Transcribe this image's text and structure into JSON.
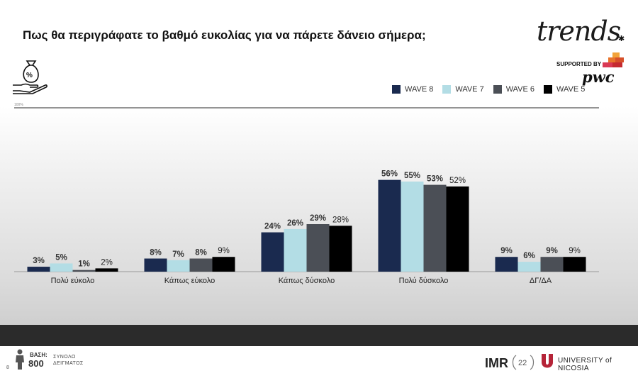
{
  "title": "Πως θα περιγράφατε το βαθμό ευκολίας για να πάρετε δάνειο σήμερα;",
  "brand": {
    "name": "trends",
    "supported_by": "SUPPORTED BY",
    "sponsor": "pwc"
  },
  "legend": [
    {
      "label": "WAVE 8",
      "color": "#1a2a4f"
    },
    {
      "label": "WAVE 7",
      "color": "#b3dde5"
    },
    {
      "label": "WAVE 6",
      "color": "#4b4f56"
    },
    {
      "label": "WAVE 5",
      "color": "#000000"
    }
  ],
  "chart_data": {
    "type": "bar",
    "categories": [
      "Πολύ εύκολο",
      "Κάπως εύκολο",
      "Κάπως δύσκολο",
      "Πολύ δύσκολο",
      "ΔΓ/ΔΑ"
    ],
    "series": [
      {
        "name": "WAVE 8",
        "values": [
          3,
          8,
          24,
          56,
          9
        ]
      },
      {
        "name": "WAVE 7",
        "values": [
          5,
          7,
          26,
          55,
          6
        ]
      },
      {
        "name": "WAVE 6",
        "values": [
          1,
          8,
          29,
          53,
          9
        ]
      },
      {
        "name": "WAVE 5",
        "values": [
          2,
          9,
          28,
          52,
          9
        ]
      }
    ],
    "value_suffix": "%",
    "ylim": [
      0,
      100
    ],
    "top_gridline_label": "100%",
    "colors": [
      "#1a2a4f",
      "#b3dde5",
      "#4b4f56",
      "#000000"
    ]
  },
  "footer": {
    "base_label": "ΒΑΣΗ:",
    "base_value": "800",
    "base_desc_line1": "ΣΥΝΟΛΟ",
    "base_desc_line2": "ΔΕΙΓΜΑΤΟΣ",
    "page_number": "8",
    "university": "UNIVERSITY of NICOSIA",
    "imr": "IMR",
    "anniversary": "22"
  }
}
